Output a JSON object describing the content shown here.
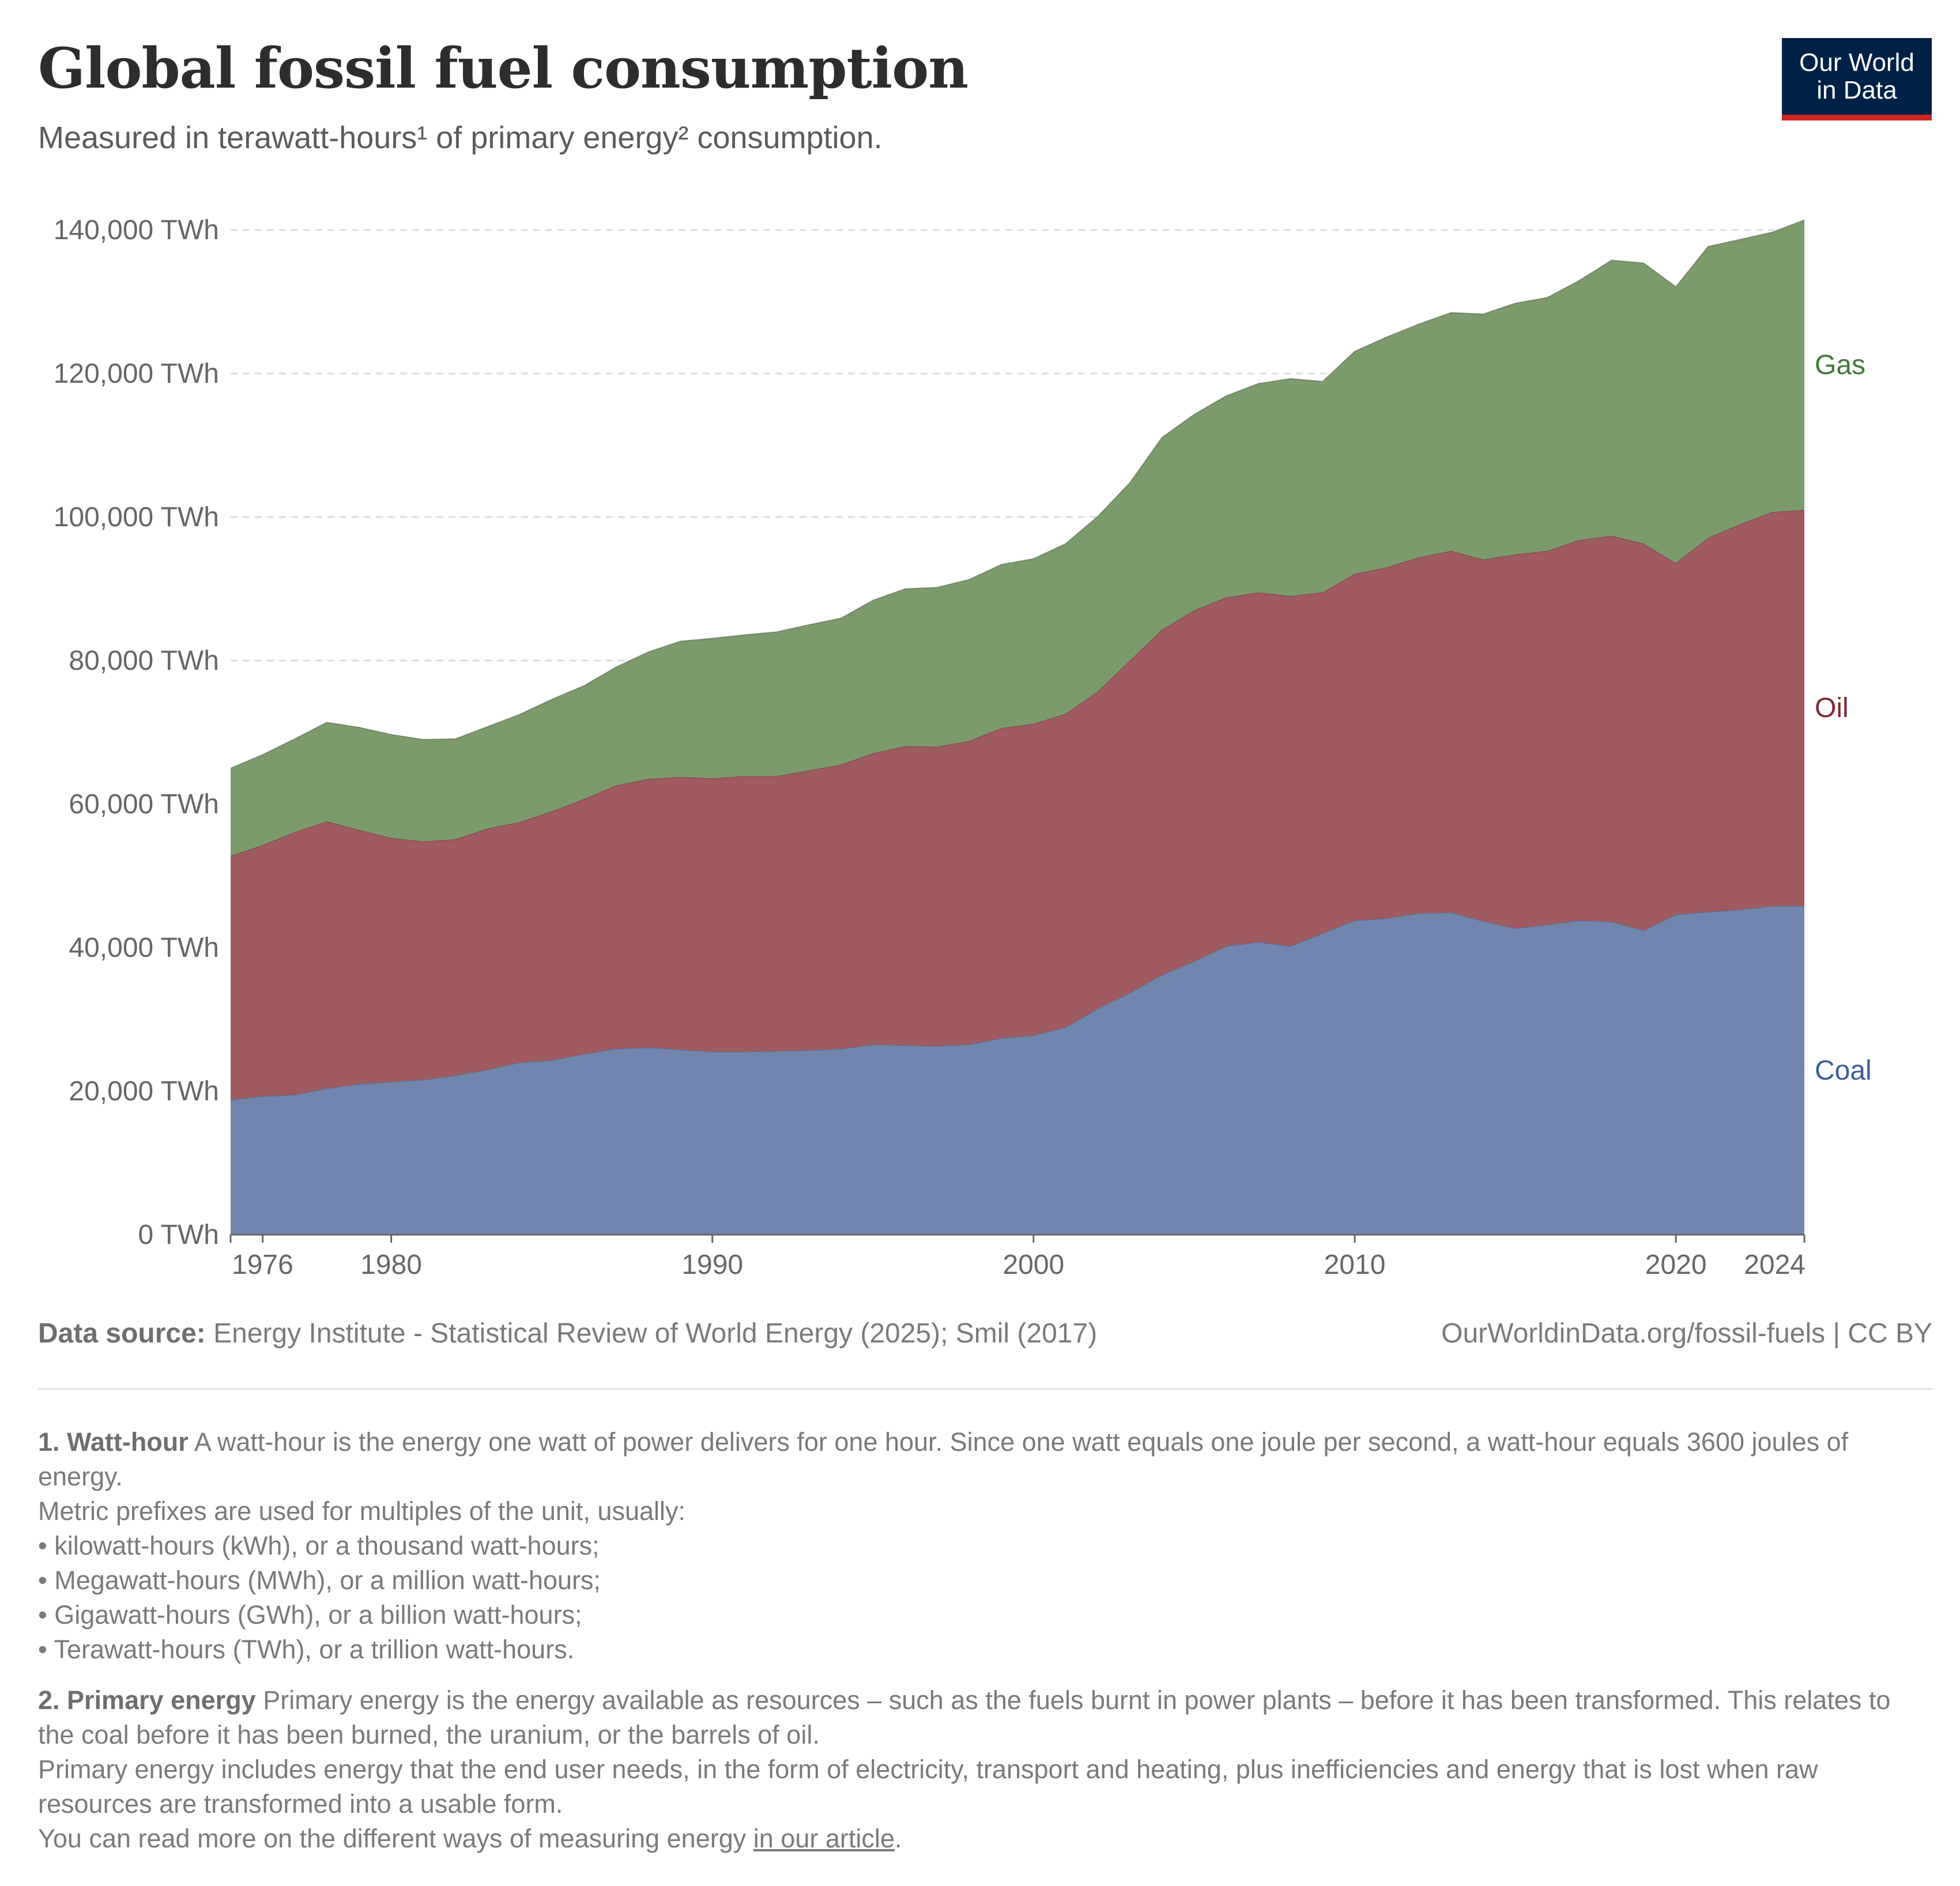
{
  "header": {
    "title": "Global fossil fuel consumption",
    "subtitle": "Measured in terawatt-hours¹ of primary energy² consumption."
  },
  "logo": {
    "line1": "Our World",
    "line2": "in Data"
  },
  "colors": {
    "coal": "#7186ae",
    "oil": "#9e5a5f",
    "gas": "#7c9b6a",
    "coal_label": "#3d5c9a",
    "oil_label": "#7e2a33",
    "gas_label": "#3f7a36"
  },
  "chart_data": {
    "type": "area",
    "stacked": true,
    "x": [
      1975,
      1976,
      1977,
      1978,
      1979,
      1980,
      1981,
      1982,
      1983,
      1984,
      1985,
      1986,
      1987,
      1988,
      1989,
      1990,
      1991,
      1992,
      1993,
      1994,
      1995,
      1996,
      1997,
      1998,
      1999,
      2000,
      2001,
      2002,
      2003,
      2004,
      2005,
      2006,
      2007,
      2008,
      2009,
      2010,
      2011,
      2012,
      2013,
      2014,
      2015,
      2016,
      2017,
      2018,
      2019,
      2020,
      2021,
      2022,
      2023,
      2024
    ],
    "series": [
      {
        "name": "Coal",
        "color": "#7186ae",
        "values": [
          18800,
          19300,
          19500,
          20400,
          21000,
          21300,
          21600,
          22200,
          23000,
          24000,
          24300,
          25200,
          25900,
          26100,
          25800,
          25500,
          25500,
          25600,
          25700,
          25900,
          26500,
          26400,
          26300,
          26500,
          27400,
          27800,
          28900,
          31500,
          33700,
          36200,
          38100,
          40200,
          40800,
          40200,
          42000,
          43800,
          44100,
          44800,
          44900,
          43700,
          42700,
          43200,
          43800,
          43600,
          42400,
          44600,
          45000,
          45300,
          45800,
          45800
        ]
      },
      {
        "name": "Oil",
        "color": "#9e5a5f",
        "values": [
          34000,
          35000,
          36600,
          37200,
          35400,
          34000,
          33200,
          32900,
          33600,
          33500,
          34700,
          35500,
          36700,
          37400,
          38000,
          38100,
          38400,
          38300,
          39000,
          39600,
          40600,
          41700,
          41700,
          42300,
          43200,
          43400,
          43700,
          44200,
          46300,
          48100,
          48900,
          48600,
          48700,
          48800,
          47500,
          48300,
          48900,
          49600,
          50400,
          50400,
          52100,
          52100,
          53000,
          53800,
          53900,
          49000,
          52100,
          53700,
          54900,
          55200
        ]
      },
      {
        "name": "Gas",
        "color": "#7c9b6a",
        "values": [
          12200,
          12600,
          13000,
          13800,
          14300,
          14400,
          14200,
          14000,
          14200,
          15000,
          15600,
          15800,
          16500,
          17700,
          18900,
          19500,
          19700,
          20100,
          20300,
          20400,
          21300,
          21900,
          22200,
          22500,
          22800,
          23000,
          23700,
          24400,
          24800,
          26800,
          27300,
          28100,
          29100,
          30300,
          29400,
          31000,
          32100,
          32500,
          33200,
          34200,
          35000,
          35300,
          36200,
          38400,
          39100,
          38500,
          40600,
          39700,
          39000,
          40400
        ]
      }
    ],
    "ylim": [
      0,
      140000
    ],
    "yticks": [
      0,
      20000,
      40000,
      60000,
      80000,
      100000,
      120000,
      140000
    ],
    "ytick_labels": [
      "0 TWh",
      "20,000 TWh",
      "40,000 TWh",
      "60,000 TWh",
      "80,000 TWh",
      "100,000 TWh",
      "120,000 TWh",
      "140,000 TWh"
    ],
    "xticks": [
      1976,
      1980,
      1990,
      2000,
      2010,
      2020,
      2024
    ],
    "xtick_labels": [
      "1976",
      "1980",
      "1990",
      "2000",
      "2010",
      "2020",
      "2024"
    ],
    "grid": "horizontal dashed",
    "legend": "inline right of plot"
  },
  "footer": {
    "source_label": "Data source:",
    "source_text": "Energy Institute - Statistical Review of World Energy (2025); Smil (2017)",
    "url_text": "OurWorldinData.org/fossil-fuels | CC BY"
  },
  "footnotes": {
    "n1_title": "1. Watt-hour",
    "n1_text": "A watt-hour is the energy one watt of power delivers for one hour. Since one watt equals one joule per second, a watt-hour equals 3600 joules of energy.",
    "n1_prefix_intro": "Metric prefixes are used for multiples of the unit, usually:",
    "n1_items": [
      "• kilowatt-hours (kWh), or a thousand watt-hours;",
      "• Megawatt-hours (MWh), or a million watt-hours;",
      "• Gigawatt-hours (GWh), or a billion watt-hours;",
      "• Terawatt-hours (TWh), or a trillion watt-hours."
    ],
    "n2_title": "2. Primary energy",
    "n2_text": "Primary energy is the energy available as resources – such as the fuels burnt in power plants – before it has been transformed. This relates to the coal before it has been burned, the uranium, or the barrels of oil.",
    "n2_text2": "Primary energy includes energy that the end user needs, in the form of electricity, transport and heating, plus inefficiencies and energy that is lost when raw resources are transformed into a usable form.",
    "n2_text3_before": "You can read more on the different ways of measuring energy ",
    "n2_link": "in our article",
    "n2_text3_after": "."
  }
}
